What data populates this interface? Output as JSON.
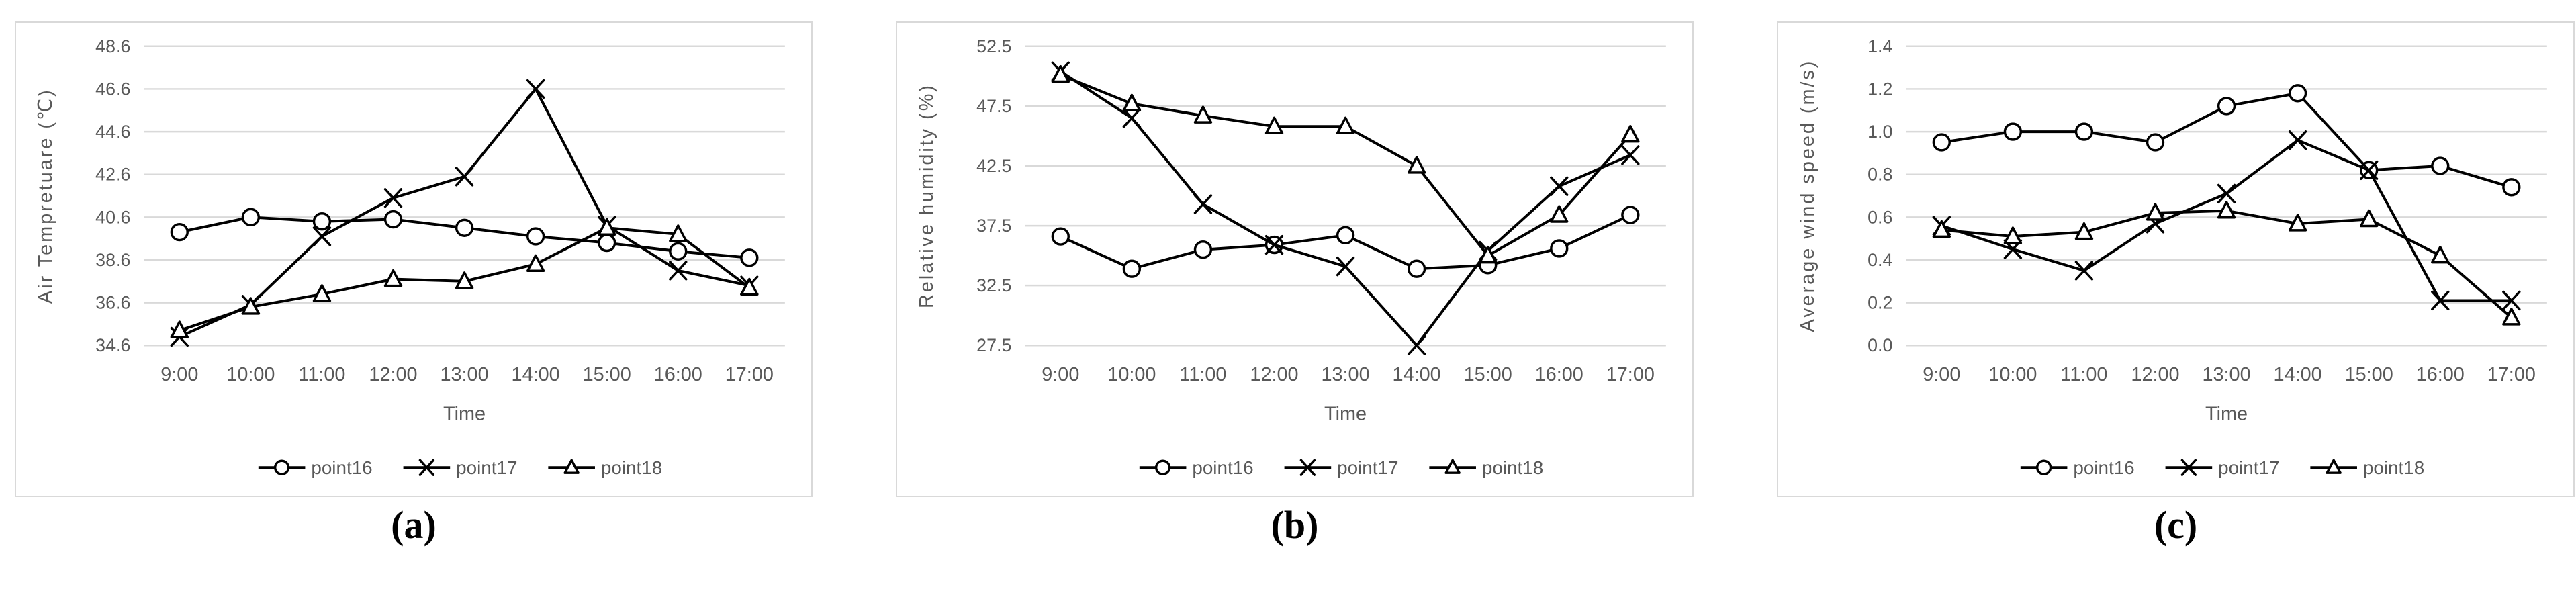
{
  "colors": {
    "background": "#ffffff",
    "series_line": "#000000",
    "marker_fill": "#ffffff",
    "gridline": "#d9d9d9",
    "panel_border": "#d9d9d9",
    "axis_text": "#595959",
    "legend_text": "#595959",
    "caption_text": "#000000"
  },
  "chart_data": [
    {
      "id": "a",
      "type": "line",
      "caption": "(a)",
      "title": "",
      "xlabel": "Time",
      "ylabel": "Air Tempretuare (℃)",
      "categories": [
        "9:00",
        "10:00",
        "11:00",
        "12:00",
        "13:00",
        "14:00",
        "15:00",
        "16:00",
        "17:00"
      ],
      "ylim": [
        34.6,
        48.6
      ],
      "ytick_labels": [
        "34.6",
        "36.6",
        "38.6",
        "40.6",
        "42.6",
        "44.6",
        "46.6",
        "48.6"
      ],
      "grid": true,
      "legend_position": "bottom",
      "series": [
        {
          "name": "point16",
          "marker": "circle",
          "values": [
            39.9,
            40.6,
            40.4,
            40.5,
            40.1,
            39.7,
            39.4,
            39.0,
            38.7
          ]
        },
        {
          "name": "point17",
          "marker": "x",
          "values": [
            35.0,
            36.5,
            39.7,
            41.5,
            42.5,
            46.6,
            40.2,
            38.1,
            37.4
          ]
        },
        {
          "name": "point18",
          "marker": "triangle",
          "values": [
            35.3,
            36.4,
            37.0,
            37.7,
            37.6,
            38.4,
            40.1,
            39.8,
            37.3
          ]
        }
      ]
    },
    {
      "id": "b",
      "type": "line",
      "caption": "(b)",
      "title": "",
      "xlabel": "Time",
      "ylabel": "Relative humidity (%)",
      "categories": [
        "9:00",
        "10:00",
        "11:00",
        "12:00",
        "13:00",
        "14:00",
        "15:00",
        "16:00",
        "17:00"
      ],
      "ylim": [
        27.5,
        52.5
      ],
      "ytick_labels": [
        "27.5",
        "32.5",
        "37.5",
        "42.5",
        "47.5",
        "52.5"
      ],
      "grid": true,
      "legend_position": "bottom",
      "series": [
        {
          "name": "point16",
          "marker": "circle",
          "values": [
            36.6,
            33.9,
            35.5,
            35.9,
            36.7,
            33.9,
            34.2,
            35.6,
            38.4
          ]
        },
        {
          "name": "point17",
          "marker": "x",
          "values": [
            50.4,
            46.5,
            39.3,
            35.9,
            34.1,
            27.5,
            35.4,
            40.8,
            43.4
          ]
        },
        {
          "name": "point18",
          "marker": "triangle",
          "values": [
            50.1,
            47.7,
            46.7,
            45.8,
            45.8,
            42.5,
            35.0,
            38.4,
            45.1
          ]
        }
      ]
    },
    {
      "id": "c",
      "type": "line",
      "caption": "(c)",
      "title": "",
      "xlabel": "Time",
      "ylabel": "Average wind speed (m/s)",
      "categories": [
        "9:00",
        "10:00",
        "11:00",
        "12:00",
        "13:00",
        "14:00",
        "15:00",
        "16:00",
        "17:00"
      ],
      "ylim": [
        0.0,
        1.4
      ],
      "ytick_labels": [
        "0.0",
        "0.2",
        "0.4",
        "0.6",
        "0.8",
        "1.0",
        "1.2",
        "1.4"
      ],
      "grid": true,
      "legend_position": "bottom",
      "series": [
        {
          "name": "point16",
          "marker": "circle",
          "values": [
            0.95,
            1.0,
            1.0,
            0.95,
            1.12,
            1.18,
            0.82,
            0.84,
            0.74
          ]
        },
        {
          "name": "point17",
          "marker": "x",
          "values": [
            0.56,
            0.45,
            0.35,
            0.57,
            0.71,
            0.96,
            0.82,
            0.21,
            0.21
          ]
        },
        {
          "name": "point18",
          "marker": "triangle",
          "values": [
            0.54,
            0.51,
            0.53,
            0.62,
            0.63,
            0.57,
            0.59,
            0.42,
            0.13
          ]
        }
      ]
    }
  ]
}
